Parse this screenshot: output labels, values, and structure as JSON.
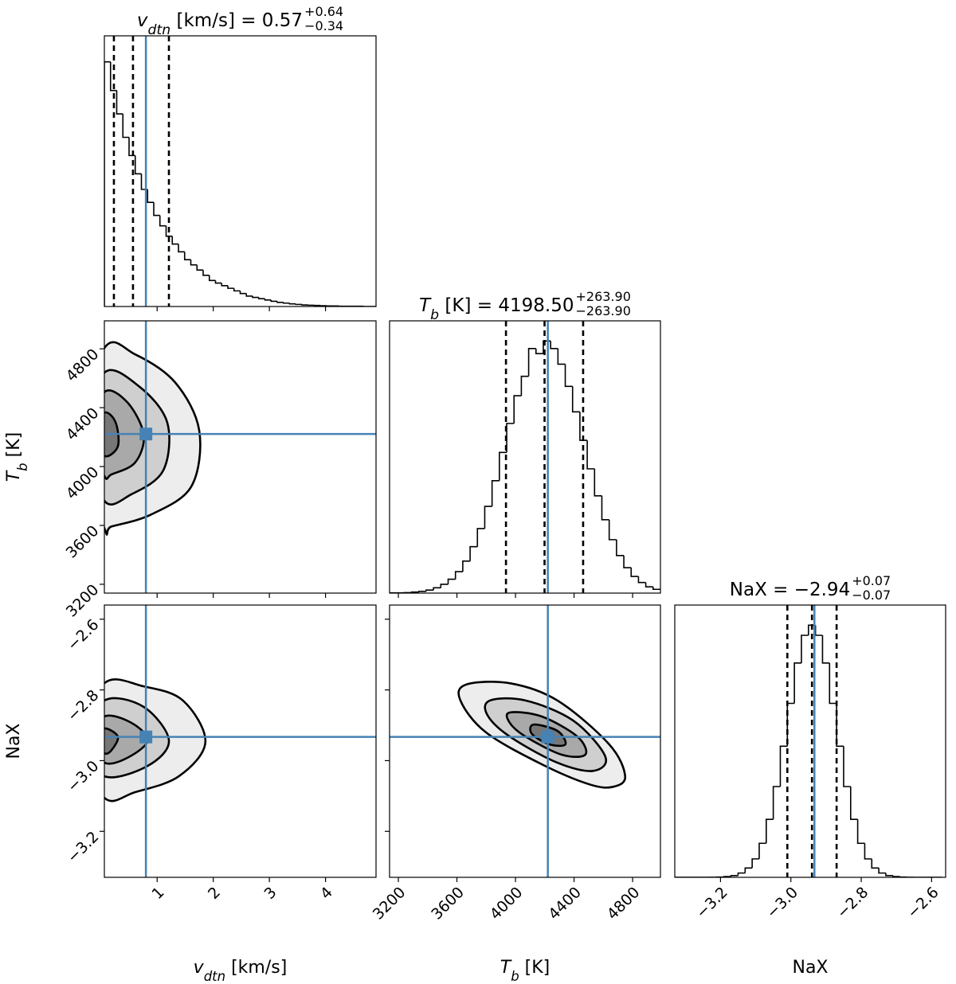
{
  "chart_data": [
    {
      "type": "histogram",
      "title": {
        "symbol": "v",
        "sub": "dtn",
        "rest": " [km/s] = 0.57",
        "plus": "+0.64",
        "minus": "−0.34"
      },
      "bins": [
        0.06,
        0.17,
        0.28,
        0.39,
        0.5,
        0.61,
        0.72,
        0.83,
        0.94,
        1.05,
        1.16,
        1.27,
        1.38,
        1.49,
        1.6,
        1.71,
        1.82,
        1.93,
        2.04,
        2.15,
        2.26,
        2.37,
        2.48,
        2.59,
        2.7,
        2.81,
        2.92,
        3.03,
        3.14,
        3.25,
        3.36,
        3.47,
        3.58,
        3.69,
        3.8,
        3.91,
        4.02,
        4.13,
        4.24,
        4.35,
        4.46,
        4.57,
        4.68,
        4.79,
        4.9
      ],
      "values": [
        94,
        83,
        74,
        65,
        58,
        51,
        45,
        40,
        35,
        31,
        27,
        24,
        21,
        18,
        16,
        14,
        12,
        10,
        9,
        8,
        7,
        6,
        5,
        4,
        3.5,
        3,
        2.5,
        2,
        1.6,
        1.3,
        1,
        0.8,
        0.6,
        0.5,
        0.4,
        0.3,
        0.2,
        0.2,
        0.1,
        0.1,
        0.1,
        0.1,
        0,
        0
      ],
      "quantiles": [
        0.23,
        0.57,
        1.21
      ],
      "truth": 0.8,
      "truth_color": "#4682b4",
      "xlim": [
        0.06,
        4.9
      ],
      "ylim": [
        0,
        104
      ],
      "xticks": [
        1,
        2,
        3,
        4
      ]
    },
    {
      "type": "contour",
      "xlim": [
        0.06,
        4.9
      ],
      "ylim": [
        3140,
        4990
      ],
      "xticks": [
        1,
        2,
        3,
        4
      ],
      "yticks": [
        3200,
        3600,
        4000,
        4400,
        4800
      ],
      "ylabel": {
        "symbol": "T",
        "sub": "b",
        "rest": " [K]"
      },
      "contours": [
        {
          "x": [
            0.06,
            0.61,
            1.32,
            1.75,
            1.61,
            0.9,
            0.19,
            0.06,
            -0.38
          ],
          "y": [
            4805,
            4762,
            4572,
            4245,
            3865,
            3675,
            3593,
            3582,
            4191
          ]
        },
        {
          "x": [
            0.06,
            0.68,
            1.18,
            1.11,
            0.54,
            0.06,
            -0.24
          ],
          "y": [
            4637,
            4544,
            4300,
            3974,
            3811,
            3767,
            4191
          ]
        },
        {
          "x": [
            0.06,
            0.47,
            0.76,
            0.61,
            0.19,
            0.06,
            -0.17
          ],
          "y": [
            4506,
            4436,
            4218,
            4028,
            3947,
            3936,
            4218
          ]
        },
        {
          "x": [
            0.06,
            0.26,
            0.3,
            0.06,
            -0.1
          ],
          "y": [
            4365,
            4300,
            4137,
            4072,
            4218
          ]
        }
      ],
      "truth_x": 0.8,
      "truth_y": 4221,
      "truth_color": "#4682b4"
    },
    {
      "type": "histogram",
      "title": {
        "symbol": "T",
        "sub": "b",
        "rest": " [K] = 4198.50",
        "plus": "+263.90",
        "minus": "−263.90"
      },
      "bins": [
        3140,
        3190,
        3240,
        3290,
        3340,
        3390,
        3440,
        3490,
        3540,
        3590,
        3640,
        3690,
        3740,
        3790,
        3840,
        3890,
        3940,
        3990,
        4040,
        4090,
        4140,
        4190,
        4240,
        4290,
        4340,
        4390,
        4440,
        4490,
        4540,
        4590,
        4640,
        4690,
        4740,
        4790,
        4840,
        4890,
        4940,
        4990
      ],
      "values": [
        0.1,
        0.1,
        0.2,
        0.4,
        0.7,
        1.2,
        2.1,
        3.5,
        5.5,
        8.5,
        12.7,
        18.4,
        25.6,
        34.4,
        44.6,
        55.8,
        67.3,
        78.3,
        86,
        97,
        95,
        100,
        97,
        90.8,
        82,
        71.9,
        60.6,
        49.3,
        38.6,
        29.1,
        21.2,
        14.9,
        10.1,
        6.6,
        4.2,
        2.5,
        1.5
      ],
      "quantiles": [
        3935,
        4198.5,
        4462
      ],
      "truth": 4221,
      "truth_color": "#4682b4",
      "xlim": [
        3140,
        4990
      ],
      "ylim": [
        0,
        108
      ],
      "xticks": [
        3200,
        3600,
        4000,
        4400,
        4800
      ]
    },
    {
      "type": "contour",
      "xlim": [
        0.06,
        4.9
      ],
      "ylim": [
        -3.33,
        -2.56
      ],
      "xticks": [
        1,
        2,
        3,
        4
      ],
      "yticks": [
        {
          "value": -3.2,
          "label": "−3.2"
        },
        {
          "value": -3.0,
          "label": "−3.0"
        },
        {
          "value": -2.8,
          "label": "−2.8"
        },
        {
          "value": -2.6,
          "label": "−2.6"
        }
      ],
      "xlabel": {
        "symbol": "v",
        "sub": "dtn",
        "rest": " [km/s]"
      },
      "ylabel": {
        "rest": "NaX"
      },
      "contours": [
        {
          "x": [
            0.06,
            0.76,
            1.46,
            1.86,
            1.39,
            0.61,
            0.06,
            -0.38
          ],
          "y": [
            -2.781,
            -2.79,
            -2.83,
            -2.947,
            -3.044,
            -3.089,
            -3.105,
            -2.943
          ]
        },
        {
          "x": [
            0.06,
            0.76,
            1.21,
            0.83,
            0.06,
            -0.24
          ],
          "y": [
            -2.83,
            -2.848,
            -2.943,
            -3.015,
            -3.044,
            -2.943
          ]
        },
        {
          "x": [
            0.06,
            0.54,
            0.83,
            0.47,
            0.06,
            -0.17
          ],
          "y": [
            -2.875,
            -2.893,
            -2.943,
            -2.992,
            -3.006,
            -2.943
          ]
        },
        {
          "x": [
            0.06,
            0.3,
            0.19,
            0.06,
            -0.07
          ],
          "y": [
            -2.909,
            -2.932,
            -2.97,
            -2.979,
            -2.943
          ]
        }
      ],
      "truth_x": 0.8,
      "truth_y": -2.933,
      "truth_color": "#4682b4"
    },
    {
      "type": "contour",
      "xlim": [
        3140,
        4990
      ],
      "ylim": [
        -3.33,
        -2.56
      ],
      "xticks": [
        3200,
        3600,
        4000,
        4400,
        4800
      ],
      "yticks": [
        -3.2,
        -3.0,
        -2.8,
        -2.6
      ],
      "xlabel": {
        "symbol": "T",
        "sub": "b",
        "rest": " [K]"
      },
      "contours": [
        {
          "x": [
            3662,
            3961,
            4287,
            4640,
            4749,
            4667,
            4504,
            4178,
            3798,
            3624
          ],
          "y": [
            -2.785,
            -2.781,
            -2.83,
            -2.954,
            -3.044,
            -3.074,
            -3.067,
            -3.01,
            -2.92,
            -2.83
          ]
        },
        {
          "x": [
            3825,
            4069,
            4395,
            4613,
            4531,
            4287,
            3961,
            3808
          ],
          "y": [
            -2.83,
            -2.83,
            -2.887,
            -2.988,
            -3.029,
            -3.006,
            -2.932,
            -2.871
          ]
        },
        {
          "x": [
            3961,
            4178,
            4423,
            4477,
            4314,
            4069,
            3961
          ],
          "y": [
            -2.864,
            -2.875,
            -2.932,
            -2.983,
            -2.983,
            -2.932,
            -2.893
          ]
        },
        {
          "x": [
            4124,
            4287,
            4341,
            4232,
            4113
          ],
          "y": [
            -2.898,
            -2.916,
            -2.954,
            -2.954,
            -2.925
          ]
        }
      ],
      "truth_x": 4221,
      "truth_y": -2.933,
      "truth_color": "#4682b4"
    },
    {
      "type": "histogram",
      "title": {
        "rest": "NaX = −2.94",
        "plus": "+0.07",
        "minus": "−0.07"
      },
      "bins": [
        -3.33,
        -3.31,
        -3.29,
        -3.27,
        -3.25,
        -3.23,
        -3.21,
        -3.19,
        -3.17,
        -3.15,
        -3.13,
        -3.11,
        -3.09,
        -3.07,
        -3.05,
        -3.03,
        -3.01,
        -2.99,
        -2.97,
        -2.95,
        -2.93,
        -2.91,
        -2.89,
        -2.87,
        -2.85,
        -2.83,
        -2.81,
        -2.79,
        -2.77,
        -2.75,
        -2.73,
        -2.71,
        -2.69,
        -2.67,
        -2.65,
        -2.63,
        -2.61,
        -2.59,
        -2.57
      ],
      "values": [
        0,
        0,
        0,
        0,
        0,
        0.03,
        0.1,
        0.3,
        0.7,
        1.7,
        3.7,
        7.3,
        13.5,
        23,
        36,
        52,
        69,
        85,
        96,
        100,
        96,
        85,
        69,
        52,
        36,
        23,
        13.5,
        7.3,
        3.7,
        1.7,
        0.7,
        0.3,
        0.1,
        0.03,
        0,
        0,
        0,
        0
      ],
      "quantiles": [
        -3.01,
        -2.94,
        -2.87
      ],
      "truth": -2.933,
      "truth_color": "#4682b4",
      "xlim": [
        -3.33,
        -2.56
      ],
      "ylim": [
        0,
        108
      ],
      "xticks": [
        {
          "value": -3.2,
          "label": "−3.2"
        },
        {
          "value": -3.0,
          "label": "−3.0"
        },
        {
          "value": -2.8,
          "label": "−2.8"
        },
        {
          "value": -2.6,
          "label": "−2.6"
        }
      ],
      "xlabel": {
        "rest": "NaX"
      }
    }
  ]
}
